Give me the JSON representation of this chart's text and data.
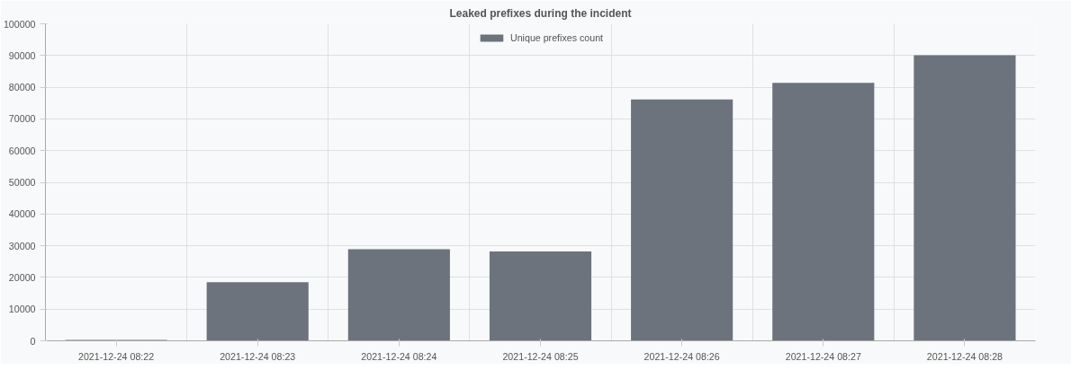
{
  "chart_data": {
    "type": "bar",
    "title": "Leaked prefixes during the incident",
    "categories": [
      "2021-12-24 08:22",
      "2021-12-24 08:23",
      "2021-12-24 08:24",
      "2021-12-24 08:25",
      "2021-12-24 08:26",
      "2021-12-24 08:27",
      "2021-12-24 08:28"
    ],
    "series": [
      {
        "name": "Unique prefixes count",
        "color": "#6c737c",
        "values": [
          300,
          18500,
          28900,
          28200,
          76100,
          81400,
          90100
        ]
      }
    ],
    "ylim": [
      0,
      100000
    ],
    "yticks": [
      0,
      10000,
      20000,
      30000,
      40000,
      50000,
      60000,
      70000,
      80000,
      90000,
      100000
    ],
    "grid": true,
    "legend": "top"
  }
}
